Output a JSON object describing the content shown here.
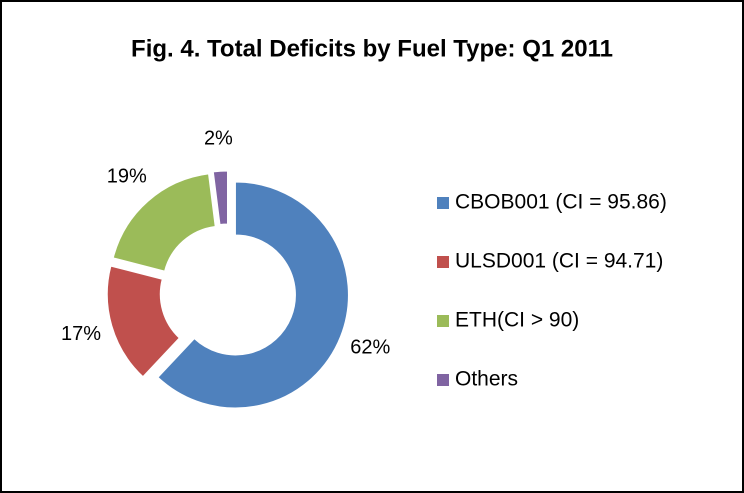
{
  "chart_data": {
    "type": "donut",
    "title": "Fig. 4.  Total Deficits by Fuel Type: Q1 2011",
    "categories": [
      "CBOB001 (CI = 95.86)",
      "ULSD001 (CI = 94.71)",
      "ETH(CI > 90)",
      "Others"
    ],
    "values": [
      62,
      17,
      19,
      2
    ],
    "value_labels": [
      "62%",
      "17%",
      "19%",
      "2%"
    ],
    "colors": [
      "#4f81bd",
      "#c0504d",
      "#9bbb59",
      "#8064a2"
    ],
    "legend": "right"
  }
}
